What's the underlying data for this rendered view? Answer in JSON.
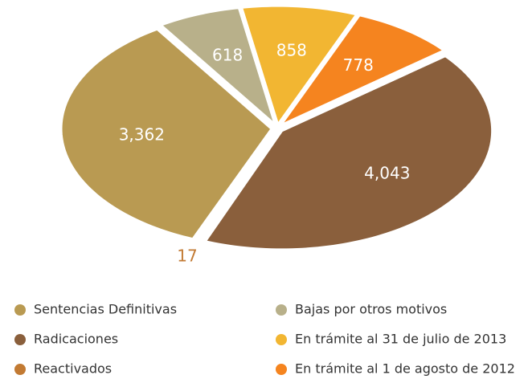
{
  "chart_data": {
    "type": "pie",
    "categories": [
      "Sentencias Definitivas",
      "Radicaciones",
      "Reactivados",
      "Bajas por otros motivos",
      "En trámite al 31 de julio de 2013",
      "En trámite al 1 de agosto de 2012"
    ],
    "values": [
      3362,
      4043,
      17,
      618,
      858,
      778
    ],
    "value_labels": [
      "3,362",
      "4,043",
      "17",
      "618",
      "858",
      "778"
    ],
    "colors": [
      "#b99a52",
      "#8a5f3c",
      "#c27a33",
      "#b8b08a",
      "#f2b632",
      "#f5841f"
    ]
  }
}
